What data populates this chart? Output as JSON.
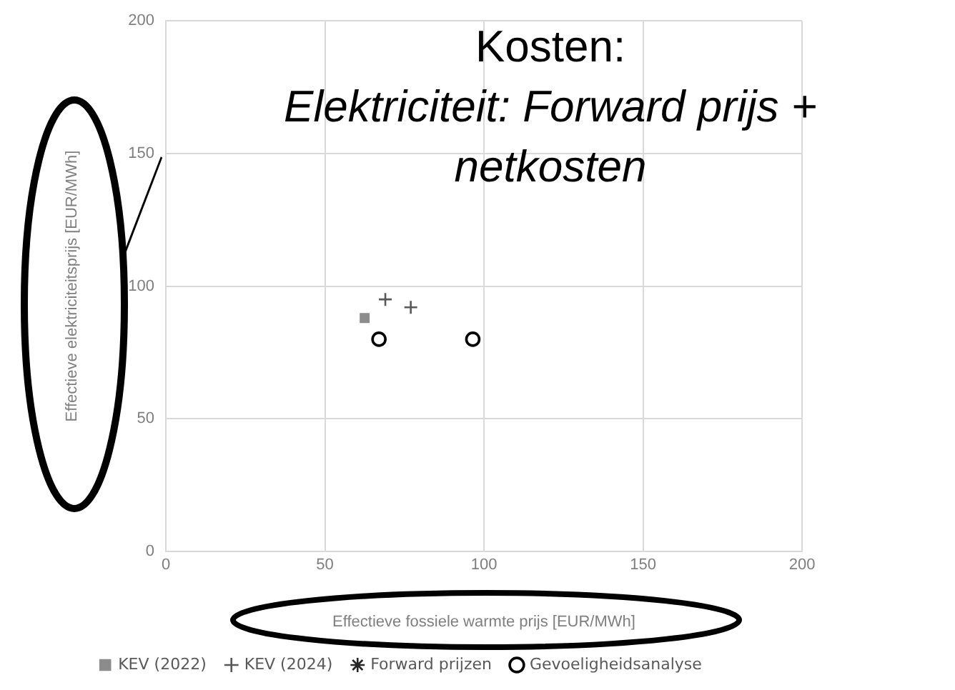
{
  "chart_data": {
    "type": "scatter",
    "title": "Kosten:",
    "subtitle": "Elektriciteit: Forward prijs + netkosten",
    "xlabel": "Effectieve fossiele warmte prijs [EUR/MWh]",
    "ylabel": "Effectieve elektriciteitsprijs [EUR/MWh]",
    "xlim": [
      0,
      200
    ],
    "xticks": [
      0,
      50,
      100,
      150,
      200
    ],
    "ylim": [
      0,
      200
    ],
    "yticks": [
      0,
      50,
      100,
      150,
      200
    ],
    "grid": true,
    "legend": "bottom",
    "series": [
      {
        "name": "KEV (2022)",
        "color": "#8c8c8c",
        "marker": "square",
        "x": [
          62.5
        ],
        "values": [
          88
        ]
      },
      {
        "name": "KEV (2024)",
        "color": "#595959",
        "marker": "cross",
        "x": [
          69,
          77
        ],
        "values": [
          95,
          92
        ]
      },
      {
        "name": "Forward prijzen",
        "color": "#262626",
        "marker": "star"
      },
      {
        "name": "Gevoeligheidsanalyse",
        "color": "#000000",
        "marker": "circle",
        "x": [
          67,
          96.5
        ],
        "values": [
          80,
          80
        ]
      }
    ]
  }
}
